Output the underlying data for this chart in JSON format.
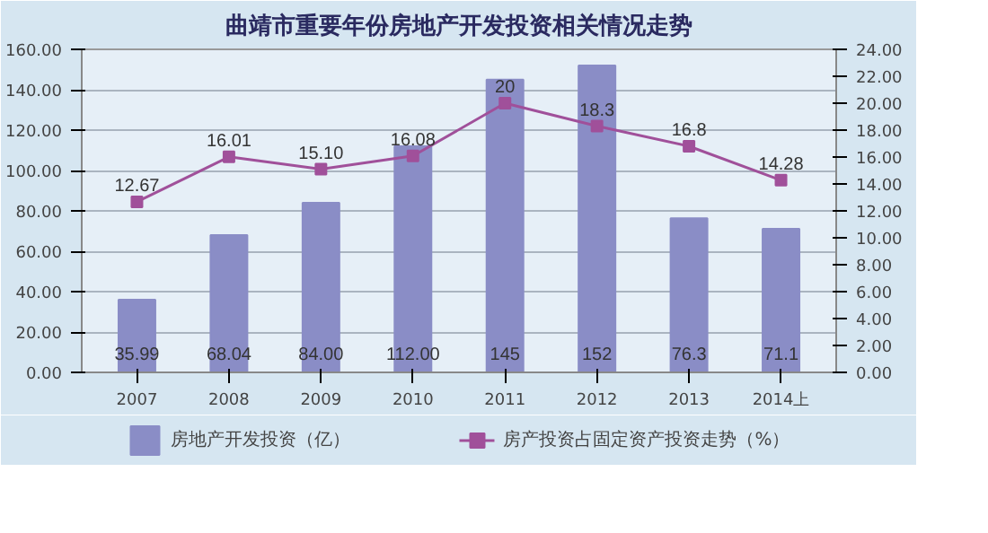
{
  "chart_data": {
    "type": "bar",
    "title": "曲靖市重要年份房地产开发投资相关情况走势",
    "categories": [
      "2007",
      "2008",
      "2009",
      "2010",
      "2011",
      "2012",
      "2013",
      "2014上"
    ],
    "series": [
      {
        "name": "房地产开发投资（亿）",
        "color": "#8a8dc6",
        "values": [
          35.99,
          68.04,
          84.0,
          112.0,
          145,
          152,
          76.3,
          71.1
        ],
        "value_labels": [
          "35.99",
          "68.04",
          "84.00",
          "112.00",
          "145",
          "152",
          "76.3",
          "71.1"
        ]
      },
      {
        "name": "房产投资占固定资产投资走势（%）",
        "type": "line",
        "axis": "y2",
        "color": "#a0509a",
        "marker": "square",
        "values": [
          12.67,
          16.01,
          15.1,
          16.08,
          20,
          18.3,
          16.8,
          14.28
        ],
        "value_labels": [
          "12.67",
          "16.01",
          "15.10",
          "16.08",
          "20",
          "18.3",
          "16.8",
          "14.28"
        ]
      }
    ],
    "ylim": [
      0,
      160
    ],
    "yticks": [
      {
        "value": 0,
        "label": "0.00"
      },
      {
        "value": 20,
        "label": "20.00"
      },
      {
        "value": 40,
        "label": "40.00"
      },
      {
        "value": 60,
        "label": "60.00"
      },
      {
        "value": 80,
        "label": "80.00"
      },
      {
        "value": 100,
        "label": "100.00"
      },
      {
        "value": 120,
        "label": "120.00"
      },
      {
        "value": 140,
        "label": "140.00"
      },
      {
        "value": 160,
        "label": "160.00"
      }
    ],
    "y2lim": [
      0,
      24
    ],
    "y2ticks": [
      {
        "value": 0,
        "label": "0.00"
      },
      {
        "value": 2,
        "label": "2.00"
      },
      {
        "value": 4,
        "label": "4.00"
      },
      {
        "value": 6,
        "label": "6.00"
      },
      {
        "value": 8,
        "label": "8.00"
      },
      {
        "value": 10,
        "label": "10.00"
      },
      {
        "value": 12,
        "label": "12.00"
      },
      {
        "value": 14,
        "label": "14.00"
      },
      {
        "value": 16,
        "label": "16.00"
      },
      {
        "value": 18,
        "label": "18.00"
      },
      {
        "value": 20,
        "label": "20.00"
      },
      {
        "value": 22,
        "label": "22.00"
      },
      {
        "value": 24,
        "label": "24.00"
      }
    ],
    "grid": "y",
    "legend": "bottom"
  }
}
